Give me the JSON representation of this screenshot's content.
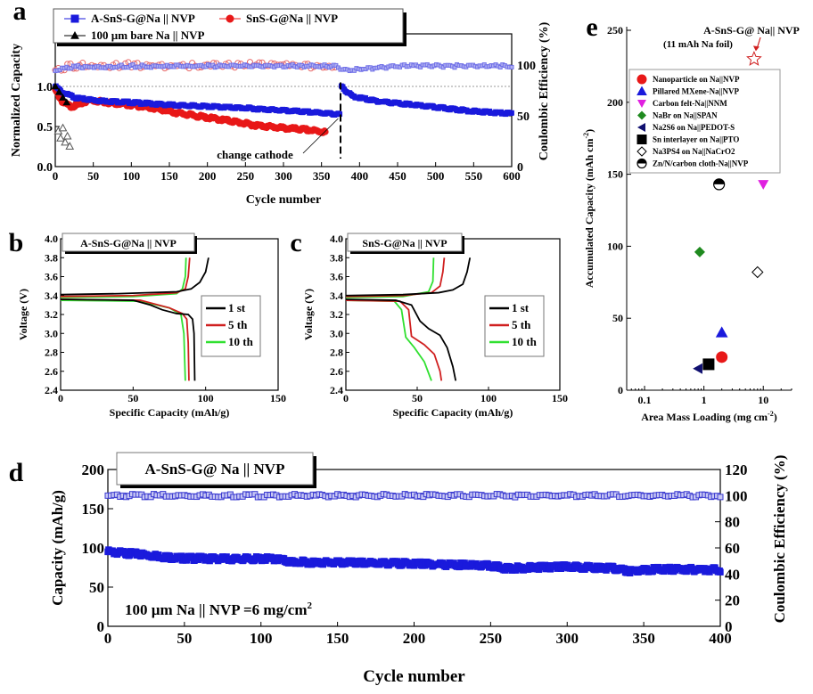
{
  "chart_data": [
    {
      "panel": "a",
      "type": "scatter",
      "xlabel": "Cycle number",
      "ylabel": "Normalized Capacity",
      "y2label": "Coulombic Efficiency (%)",
      "xlim": [
        0,
        600
      ],
      "ylim": [
        0,
        1.2
      ],
      "y2lim": [
        0,
        125
      ],
      "xticks": [
        0,
        50,
        100,
        150,
        200,
        250,
        300,
        350,
        400,
        450,
        500,
        550,
        600
      ],
      "yticks": [
        "0.0",
        "0.5",
        "1.0"
      ],
      "y2ticks": [
        "0",
        "50",
        "100"
      ],
      "reference_line": 1.0,
      "annotation": "change cathode",
      "annotation_x": 375,
      "series": [
        {
          "name": "A-SnS-G@Na || NVP",
          "color": "#1a1adc",
          "marker": "square",
          "x": [
            0,
            10,
            30,
            60,
            100,
            150,
            200,
            250,
            300,
            350,
            374,
            376,
            390,
            420,
            450,
            500,
            550,
            600
          ],
          "y": [
            1.0,
            0.92,
            0.85,
            0.82,
            0.8,
            0.77,
            0.75,
            0.73,
            0.7,
            0.67,
            0.65,
            1.0,
            0.88,
            0.82,
            0.79,
            0.74,
            0.69,
            0.66
          ]
        },
        {
          "name": "SnS-G@Na || NVP",
          "color": "#e81818",
          "marker": "circle",
          "x": [
            0,
            10,
            20,
            30,
            45,
            70,
            100,
            130,
            160,
            200,
            230,
            260,
            300,
            330,
            355
          ],
          "y": [
            0.95,
            0.8,
            0.75,
            0.77,
            0.83,
            0.8,
            0.77,
            0.73,
            0.67,
            0.61,
            0.57,
            0.52,
            0.48,
            0.46,
            0.43
          ]
        },
        {
          "name": "100 µm bare Na || NVP",
          "color": "#000000",
          "marker": "triangle",
          "x": [
            0,
            5,
            10,
            15
          ],
          "y": [
            1.0,
            0.93,
            0.86,
            0.8
          ]
        }
      ],
      "ce_series": [
        {
          "name": "A-SnS-G@Na || NVP",
          "x": [
            0,
            20,
            100,
            200,
            300,
            370,
            380,
            450,
            500,
            600
          ],
          "y": [
            94,
            98,
            99,
            99,
            99,
            99,
            95,
            99,
            99,
            99
          ]
        },
        {
          "name": "SnS-G@Na || NVP",
          "x": [
            0,
            20,
            100,
            200,
            280,
            355
          ],
          "y": [
            95,
            99,
            100,
            99,
            101,
            98
          ]
        },
        {
          "name": "100 µm bare Na || NVP",
          "x": [
            0,
            3,
            6,
            9,
            12,
            15
          ],
          "y": [
            35,
            28,
            38,
            24,
            30,
            20
          ]
        }
      ]
    },
    {
      "panel": "b",
      "type": "line",
      "inset_title": "A-SnS-G@Na || NVP",
      "xlabel": "Specific Capacity (mAh/g)",
      "ylabel": "Voltage (V)",
      "xlim": [
        0,
        150
      ],
      "ylim": [
        2.4,
        4.0
      ],
      "xticks": [
        "0",
        "50",
        "100",
        "150"
      ],
      "yticks": [
        "2.4",
        "2.6",
        "2.8",
        "3.0",
        "3.2",
        "3.4",
        "3.6",
        "3.8",
        "4.0"
      ],
      "series": [
        {
          "name": "1 st",
          "color": "#000000",
          "charge": [
            [
              0,
              3.41
            ],
            [
              40,
              3.42
            ],
            [
              80,
              3.44
            ],
            [
              90,
              3.47
            ],
            [
              96,
              3.54
            ],
            [
              100,
              3.65
            ],
            [
              102,
              3.8
            ]
          ],
          "discharge": [
            [
              0,
              3.36
            ],
            [
              50,
              3.35
            ],
            [
              62,
              3.3
            ],
            [
              70,
              3.25
            ],
            [
              80,
              3.21
            ],
            [
              88,
              3.2
            ],
            [
              91,
              3.15
            ],
            [
              92,
              3.0
            ],
            [
              92.5,
              2.5
            ]
          ]
        },
        {
          "name": "5 th",
          "color": "#d02020",
          "charge": [
            [
              0,
              3.39
            ],
            [
              50,
              3.4
            ],
            [
              80,
              3.43
            ],
            [
              86,
              3.47
            ],
            [
              88,
              3.6
            ],
            [
              89,
              3.8
            ]
          ],
          "discharge": [
            [
              0,
              3.36
            ],
            [
              55,
              3.35
            ],
            [
              75,
              3.27
            ],
            [
              84,
              3.21
            ],
            [
              87,
              3.15
            ],
            [
              88,
              2.9
            ],
            [
              88.5,
              2.5
            ]
          ]
        },
        {
          "name": "10 th",
          "color": "#30e030",
          "charge": [
            [
              0,
              3.38
            ],
            [
              50,
              3.39
            ],
            [
              80,
              3.42
            ],
            [
              84,
              3.47
            ],
            [
              86,
              3.6
            ],
            [
              86.5,
              3.8
            ]
          ],
          "discharge": [
            [
              0,
              3.35
            ],
            [
              55,
              3.34
            ],
            [
              75,
              3.27
            ],
            [
              83,
              3.2
            ],
            [
              85,
              3.0
            ],
            [
              86,
              2.5
            ]
          ]
        }
      ]
    },
    {
      "panel": "c",
      "type": "line",
      "inset_title": "SnS-G@Na || NVP",
      "xlabel": "Specific Capacity (mAh/g)",
      "ylabel": "Voltage (V)",
      "xlim": [
        0,
        150
      ],
      "ylim": [
        2.4,
        4.0
      ],
      "xticks": [
        "0",
        "50",
        "100",
        "150"
      ],
      "yticks": [
        "2.4",
        "2.6",
        "2.8",
        "3.0",
        "3.2",
        "3.4",
        "3.6",
        "3.8",
        "4.0"
      ],
      "series": [
        {
          "name": "1 st",
          "color": "#000000",
          "charge": [
            [
              0,
              3.4
            ],
            [
              40,
              3.41
            ],
            [
              65,
              3.43
            ],
            [
              75,
              3.46
            ],
            [
              82,
              3.52
            ],
            [
              85,
              3.65
            ],
            [
              87,
              3.8
            ]
          ],
          "discharge": [
            [
              0,
              3.36
            ],
            [
              35,
              3.35
            ],
            [
              46,
              3.3
            ],
            [
              52,
              3.13
            ],
            [
              58,
              3.05
            ],
            [
              66,
              2.98
            ],
            [
              71,
              2.85
            ],
            [
              75,
              2.65
            ],
            [
              77,
              2.5
            ]
          ]
        },
        {
          "name": "5 th",
          "color": "#d02020",
          "charge": [
            [
              0,
              3.39
            ],
            [
              40,
              3.4
            ],
            [
              60,
              3.43
            ],
            [
              66,
              3.5
            ],
            [
              68,
              3.65
            ],
            [
              69,
              3.8
            ]
          ],
          "discharge": [
            [
              0,
              3.35
            ],
            [
              38,
              3.34
            ],
            [
              44,
              3.25
            ],
            [
              46,
              2.97
            ],
            [
              55,
              2.88
            ],
            [
              62,
              2.78
            ],
            [
              66,
              2.6
            ],
            [
              67,
              2.5
            ]
          ]
        },
        {
          "name": "10 th",
          "color": "#30e030",
          "charge": [
            [
              0,
              3.38
            ],
            [
              40,
              3.39
            ],
            [
              58,
              3.44
            ],
            [
              61,
              3.55
            ],
            [
              61.5,
              3.8
            ]
          ],
          "discharge": [
            [
              0,
              3.35
            ],
            [
              34,
              3.34
            ],
            [
              39,
              3.25
            ],
            [
              42,
              2.96
            ],
            [
              48,
              2.85
            ],
            [
              55,
              2.7
            ],
            [
              60,
              2.5
            ]
          ]
        }
      ]
    },
    {
      "panel": "d",
      "type": "scatter",
      "inset_title": "A-SnS-G@ Na || NVP",
      "annotation": "100 µm Na || NVP =6 mg/cm",
      "annotation_sup": "2",
      "xlabel": "Cycle number",
      "ylabel": "Capacity (mAh/g)",
      "y2label": "Coulombic Efficiency (%)",
      "xlim": [
        0,
        400
      ],
      "ylim": [
        0,
        200
      ],
      "y2lim": [
        0,
        120
      ],
      "xticks": [
        0,
        50,
        100,
        150,
        200,
        250,
        300,
        350,
        400
      ],
      "yticks": [
        0,
        50,
        100,
        150,
        200
      ],
      "y2ticks": [
        0,
        20,
        40,
        60,
        80,
        100,
        120
      ],
      "series": [
        {
          "name": "capacity",
          "color": "#1a1adc",
          "x": [
            0,
            20,
            45,
            80,
            110,
            120,
            160,
            200,
            250,
            260,
            300,
            330,
            340,
            360,
            400
          ],
          "y": [
            95,
            92,
            87,
            86,
            86,
            82,
            81,
            80,
            77,
            74,
            76,
            74,
            70,
            73,
            72
          ]
        },
        {
          "name": "coulombic efficiency",
          "color": "#3a3ad0",
          "x": [
            0,
            50,
            100,
            150,
            200,
            250,
            300,
            350,
            400
          ],
          "y": [
            100,
            100,
            100,
            100,
            100,
            100,
            100,
            100,
            100
          ]
        }
      ]
    },
    {
      "panel": "e",
      "type": "scatter",
      "xlabel": "Area Mass Loading (mg cm",
      "xlabel_sup": "-2",
      "xlabel_end": ")",
      "ylabel": "Accumulated Capacity (mAh cm",
      "ylabel_sup": "-2",
      "ylabel_end": ")",
      "xscale": "log",
      "xlim": [
        0.05,
        30
      ],
      "ylim": [
        0,
        250
      ],
      "xticks": [
        "0.1",
        "1",
        "10"
      ],
      "yticks": [
        "0",
        "50",
        "100",
        "150",
        "200",
        "250"
      ],
      "highlight": {
        "name": "A-SnS-G@ Na|| NVP",
        "note": "(11 mAh Na foil)",
        "x": 7,
        "y": 230,
        "color": "#d02020",
        "marker": "star"
      },
      "series": [
        {
          "name": "Nanoparticle on Na||NVP",
          "x": 2,
          "y": 23,
          "color": "#e81818",
          "marker": "circle"
        },
        {
          "name": "Pillared MXene-Na||NVP",
          "x": 2,
          "y": 40,
          "color": "#1a1adc",
          "marker": "triangle-up"
        },
        {
          "name": "Carbon felt-Na||NNM",
          "x": 10,
          "y": 143,
          "color": "#e020e0",
          "marker": "triangle-down"
        },
        {
          "name": "NaBr on Na||SPAN",
          "x": 0.85,
          "y": 96,
          "color": "#1f8a1f",
          "marker": "diamond"
        },
        {
          "name": "Na2S6 on Na||PEDOT-S",
          "x": 0.8,
          "y": 15,
          "color": "#101070",
          "marker": "triangle-left"
        },
        {
          "name": "Sn interlayer on Na||PTO",
          "x": 1.2,
          "y": 18,
          "color": "#000000",
          "marker": "square"
        },
        {
          "name": "Na3PS4 on Na||NaCrO2",
          "x": 8,
          "y": 82,
          "color": "#000000",
          "marker": "diamond-open"
        },
        {
          "name": "Zn/N/carbon cloth-Na||NVP",
          "x": 1.8,
          "y": 143,
          "color": "#000000",
          "marker": "half-circle"
        }
      ]
    }
  ],
  "panel_labels": [
    "a",
    "b",
    "c",
    "d",
    "e"
  ]
}
